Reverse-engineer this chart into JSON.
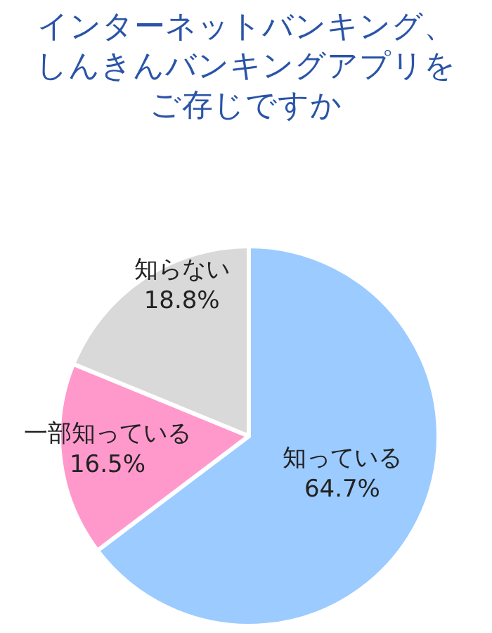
{
  "chart_data": {
    "type": "pie",
    "title": "インターネットバンキング、しんきんバンキングアプリをご存じですか",
    "categories": [
      "知っている",
      "一部知っている",
      "知らない"
    ],
    "values": [
      64.7,
      16.5,
      18.8
    ],
    "value_labels": [
      "64.7%",
      "16.5%",
      "18.8%"
    ],
    "colors": [
      "#9ccbff",
      "#ff99cc",
      "#d9d9d9"
    ]
  }
}
